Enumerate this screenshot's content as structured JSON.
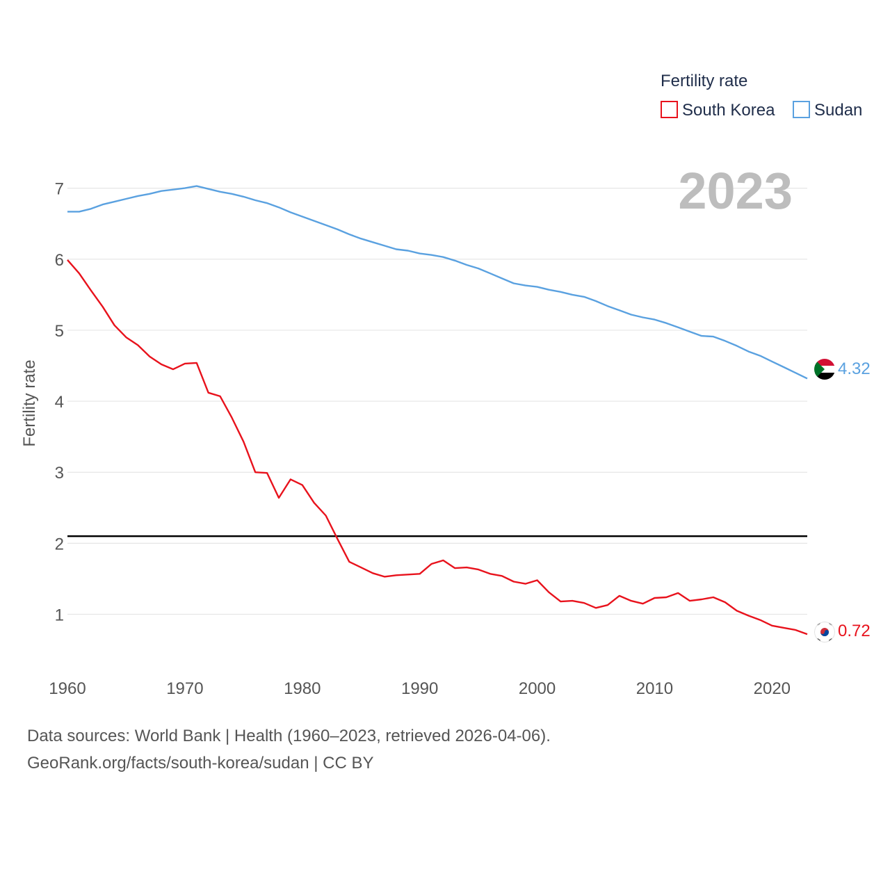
{
  "chart_data": {
    "type": "line",
    "title": "",
    "ylabel": "Fertility rate",
    "xlabel": "",
    "year_label": "2023",
    "x_range": [
      1960,
      2023
    ],
    "ylim": [
      0.3,
      7.3
    ],
    "x_ticks": [
      1960,
      1970,
      1980,
      1990,
      2000,
      2010,
      2020
    ],
    "y_ticks": [
      1,
      2,
      3,
      4,
      5,
      6,
      7
    ],
    "reference_line": 2.1,
    "legend": {
      "title": "Fertility rate",
      "position": "top-right"
    },
    "series": [
      {
        "name": "South Korea",
        "color": "#e8121c",
        "end_label": "0.72",
        "flag_icon": "south-korea-flag-icon",
        "x": [
          1960,
          1961,
          1962,
          1963,
          1964,
          1965,
          1966,
          1967,
          1968,
          1969,
          1970,
          1971,
          1972,
          1973,
          1974,
          1975,
          1976,
          1977,
          1978,
          1979,
          1980,
          1981,
          1982,
          1983,
          1984,
          1985,
          1986,
          1987,
          1988,
          1989,
          1990,
          1991,
          1992,
          1993,
          1994,
          1995,
          1996,
          1997,
          1998,
          1999,
          2000,
          2001,
          2002,
          2003,
          2004,
          2005,
          2006,
          2007,
          2008,
          2009,
          2010,
          2011,
          2012,
          2013,
          2014,
          2015,
          2016,
          2017,
          2018,
          2019,
          2020,
          2021,
          2022,
          2023
        ],
        "values": [
          5.99,
          5.8,
          5.56,
          5.33,
          5.07,
          4.9,
          4.79,
          4.63,
          4.52,
          4.45,
          4.53,
          4.54,
          4.12,
          4.07,
          3.77,
          3.43,
          3.0,
          2.99,
          2.64,
          2.9,
          2.82,
          2.57,
          2.39,
          2.06,
          1.74,
          1.66,
          1.58,
          1.53,
          1.55,
          1.56,
          1.57,
          1.71,
          1.76,
          1.65,
          1.66,
          1.63,
          1.57,
          1.54,
          1.46,
          1.43,
          1.48,
          1.31,
          1.18,
          1.19,
          1.16,
          1.09,
          1.13,
          1.26,
          1.19,
          1.15,
          1.23,
          1.24,
          1.3,
          1.19,
          1.21,
          1.24,
          1.17,
          1.05,
          0.98,
          0.92,
          0.84,
          0.81,
          0.78,
          0.72
        ]
      },
      {
        "name": "Sudan",
        "color": "#5aa1e0",
        "end_label": "4.32",
        "flag_icon": "sudan-flag-icon",
        "x": [
          1960,
          1961,
          1962,
          1963,
          1964,
          1965,
          1966,
          1967,
          1968,
          1969,
          1970,
          1971,
          1972,
          1973,
          1974,
          1975,
          1976,
          1977,
          1978,
          1979,
          1980,
          1981,
          1982,
          1983,
          1984,
          1985,
          1986,
          1987,
          1988,
          1989,
          1990,
          1991,
          1992,
          1993,
          1994,
          1995,
          1996,
          1997,
          1998,
          1999,
          2000,
          2001,
          2002,
          2003,
          2004,
          2005,
          2006,
          2007,
          2008,
          2009,
          2010,
          2011,
          2012,
          2013,
          2014,
          2015,
          2016,
          2017,
          2018,
          2019,
          2020,
          2021,
          2022,
          2023
        ],
        "values": [
          6.67,
          6.67,
          6.71,
          6.77,
          6.81,
          6.85,
          6.89,
          6.92,
          6.96,
          6.98,
          7.0,
          7.03,
          6.99,
          6.95,
          6.92,
          6.88,
          6.83,
          6.79,
          6.73,
          6.66,
          6.6,
          6.54,
          6.48,
          6.42,
          6.35,
          6.29,
          6.24,
          6.19,
          6.14,
          6.12,
          6.08,
          6.06,
          6.03,
          5.98,
          5.92,
          5.87,
          5.8,
          5.73,
          5.66,
          5.63,
          5.61,
          5.57,
          5.54,
          5.5,
          5.47,
          5.41,
          5.34,
          5.28,
          5.22,
          5.18,
          5.15,
          5.1,
          5.04,
          4.98,
          4.92,
          4.91,
          4.85,
          4.78,
          4.7,
          4.64,
          4.56,
          4.48,
          4.4,
          4.32
        ]
      }
    ]
  },
  "footer": {
    "sources": "Data sources: World Bank | Health (1960–2023, retrieved 2026-04-06).",
    "attribution": "GeoRank.org/facts/south-korea/sudan | CC BY"
  }
}
